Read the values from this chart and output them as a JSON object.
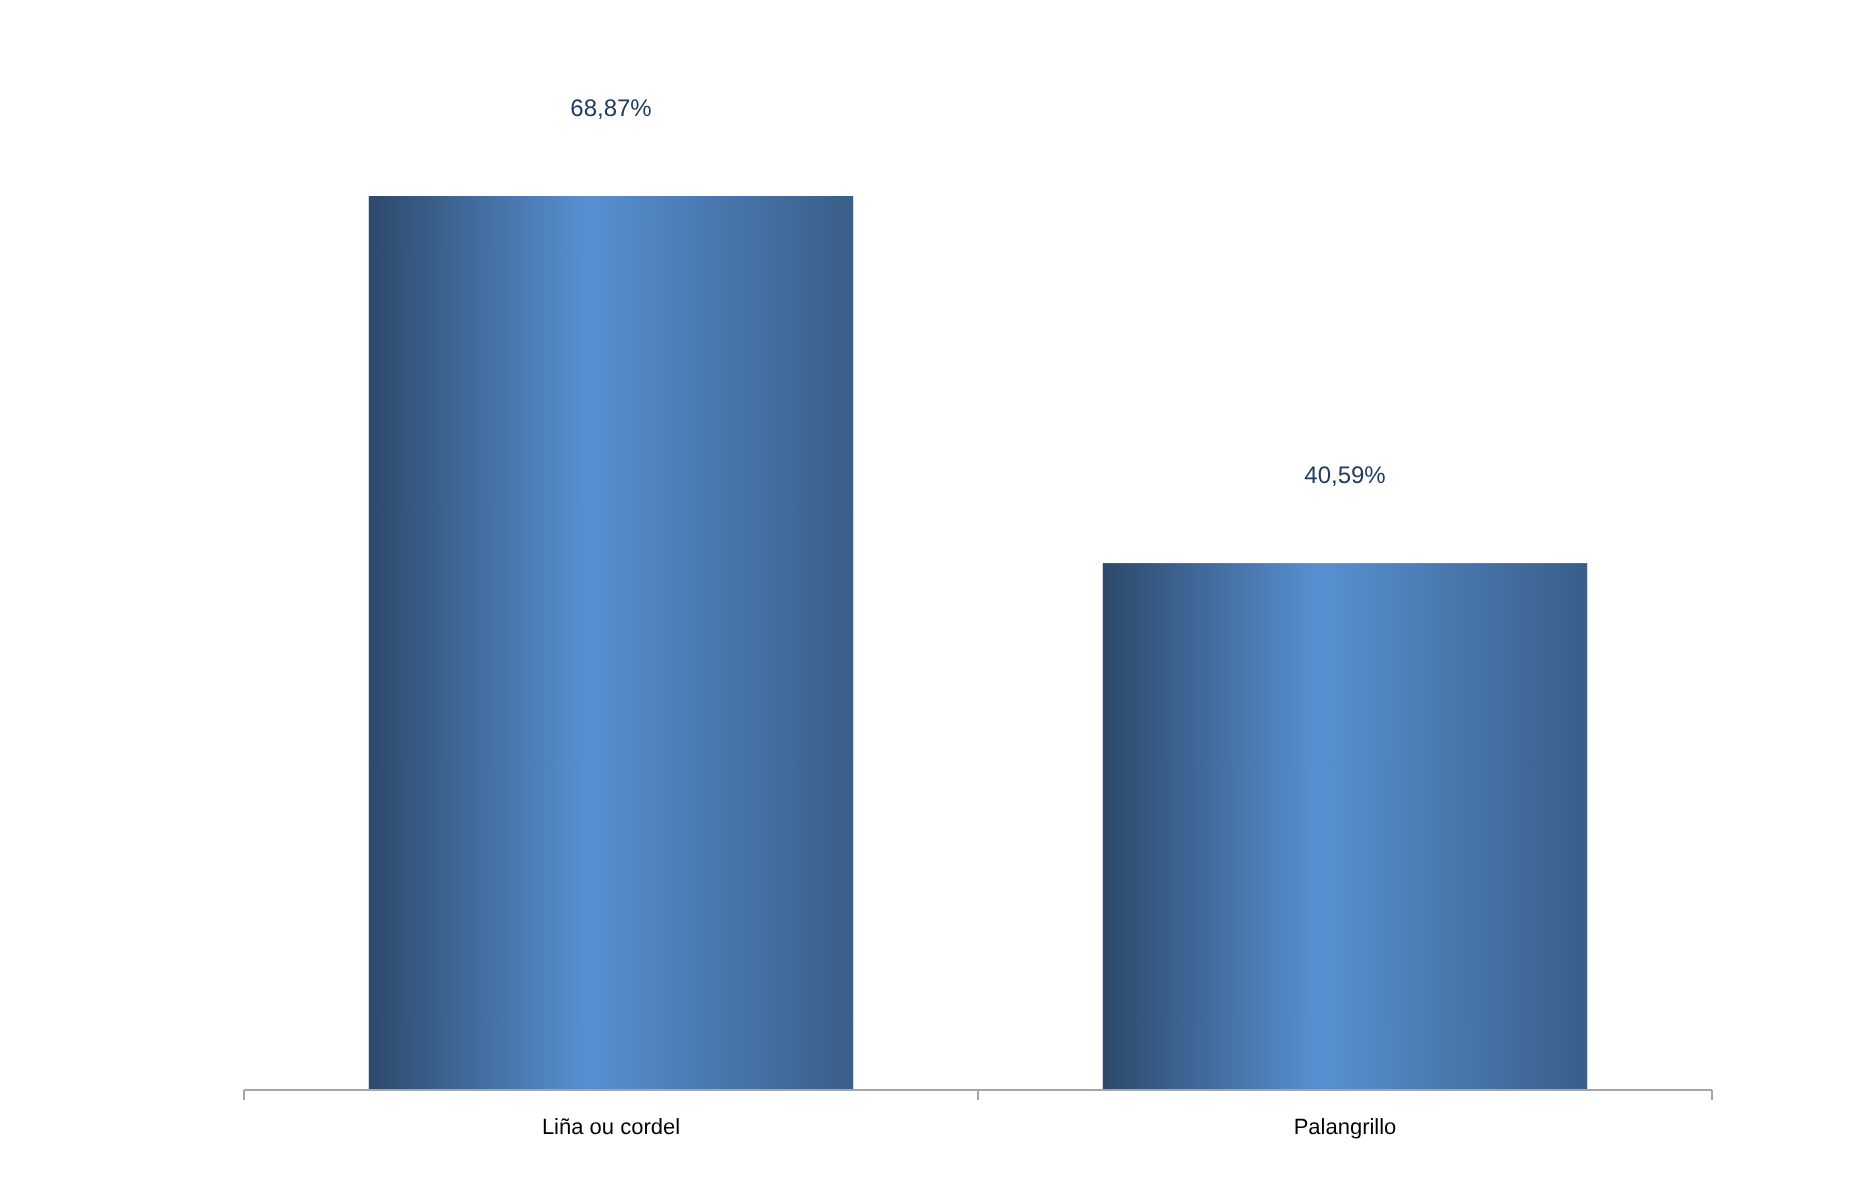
{
  "chart_data": {
    "type": "bar",
    "categories": [
      "Liña ou cordel",
      "Palangrillo"
    ],
    "values": [
      68.87,
      40.59
    ],
    "value_labels": [
      "68,87%",
      "40,59%"
    ],
    "color": "#4f81bd"
  }
}
